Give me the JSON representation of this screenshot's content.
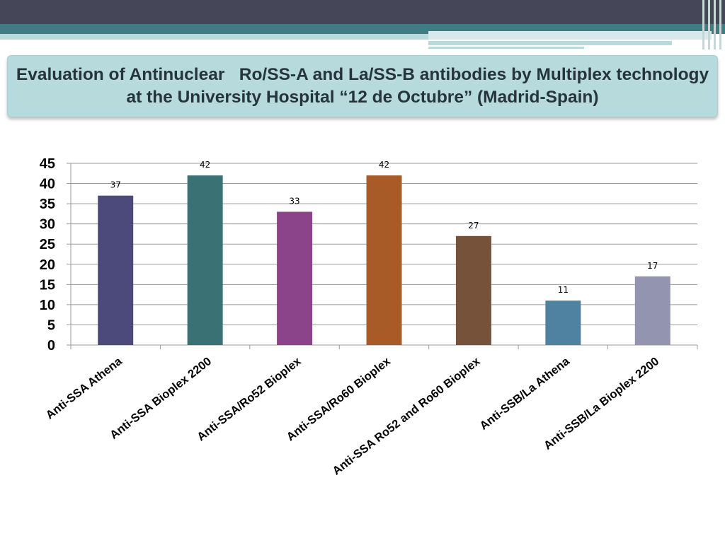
{
  "slide": {
    "title": "Evaluation of Antinuclear   Ro/SS-A and La/SS-B antibodies by Multiplex technology at the University Hospital “12 de Octubre” (Madrid-Spain)"
  },
  "colors": {
    "header_dark": "#454657",
    "header_teal": "#3f7c83",
    "title_box": "#b7dadc"
  },
  "chart_data": {
    "type": "bar",
    "title": "",
    "xlabel": "",
    "ylabel": "",
    "ylim": [
      0,
      45
    ],
    "yticks": [
      0,
      5,
      10,
      15,
      20,
      25,
      30,
      35,
      40,
      45
    ],
    "grid": true,
    "categories": [
      "Anti-SSA Athena",
      "Anti-SSA Bioplex 2200",
      "Anti-SSA/Ro52 Bioplex",
      "Anti-SSA/Ro60 Bioplex",
      "Anti-SSA Ro52 and Ro60 Bioplex",
      "Anti-SSB/La Athena",
      "Anti-SSB/La Bioplex 2200"
    ],
    "values": [
      37,
      42,
      33,
      42,
      27,
      11,
      17
    ],
    "bar_colors": [
      "#4b4a7a",
      "#3a7174",
      "#8b4389",
      "#a95b27",
      "#77523a",
      "#4f81a0",
      "#9394b0"
    ]
  }
}
